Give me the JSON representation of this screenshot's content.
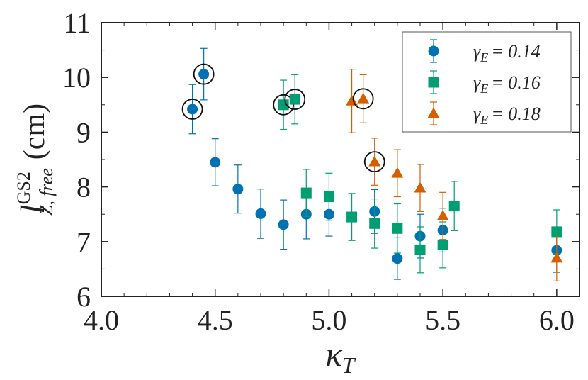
{
  "chart_data": {
    "type": "scatter",
    "title": "",
    "xlabel": "κ_T",
    "ylabel": "l^{GS2}_{Z, free} (cm)",
    "xlabel_parts": {
      "main": "κ",
      "sub": "T"
    },
    "ylabel_parts": {
      "main": "l",
      "sup": "GS2",
      "sub": "Z, free",
      "unit": "(cm)"
    },
    "xlim": [
      4.0,
      6.1
    ],
    "ylim": [
      6.0,
      11.0
    ],
    "xticks": [
      4.0,
      4.5,
      5.0,
      5.5,
      6.0
    ],
    "xtick_labels": [
      "4.0",
      "4.5",
      "5.0",
      "5.5",
      "6.0"
    ],
    "yticks": [
      6,
      7,
      8,
      9,
      10,
      11
    ],
    "ytick_labels": [
      "6",
      "7",
      "8",
      "9",
      "10",
      "11"
    ],
    "legend_position": "top-right",
    "series": [
      {
        "name": "γE = 0.14",
        "legend_label": "γ",
        "legend_sub": "E",
        "legend_value": "= 0.14",
        "marker": "circle",
        "color": "#0072B2",
        "points": [
          {
            "x": 4.4,
            "y": 9.42,
            "err": 0.45,
            "circled": true
          },
          {
            "x": 4.45,
            "y": 10.06,
            "err": 0.47,
            "circled": true
          },
          {
            "x": 4.5,
            "y": 8.45,
            "err": 0.43
          },
          {
            "x": 4.6,
            "y": 7.96,
            "err": 0.44
          },
          {
            "x": 4.7,
            "y": 7.51,
            "err": 0.45
          },
          {
            "x": 4.8,
            "y": 7.31,
            "err": 0.45
          },
          {
            "x": 4.9,
            "y": 7.5,
            "err": 0.45
          },
          {
            "x": 5.0,
            "y": 7.5,
            "err": 0.4
          },
          {
            "x": 5.2,
            "y": 7.55,
            "err": 0.4
          },
          {
            "x": 5.3,
            "y": 6.69,
            "err": 0.38
          },
          {
            "x": 5.4,
            "y": 7.1,
            "err": 0.4
          },
          {
            "x": 5.5,
            "y": 7.21,
            "err": 0.4
          },
          {
            "x": 6.0,
            "y": 6.84,
            "err": 0.4
          }
        ]
      },
      {
        "name": "γE = 0.16",
        "legend_label": "γ",
        "legend_sub": "E",
        "legend_value": "= 0.16",
        "marker": "square",
        "color": "#009E73",
        "points": [
          {
            "x": 4.8,
            "y": 9.5,
            "err": 0.45,
            "circled": true
          },
          {
            "x": 4.85,
            "y": 9.6,
            "err": 0.45,
            "circled": true
          },
          {
            "x": 4.9,
            "y": 7.89,
            "err": 0.43
          },
          {
            "x": 5.0,
            "y": 7.82,
            "err": 0.43
          },
          {
            "x": 5.1,
            "y": 7.45,
            "err": 0.43
          },
          {
            "x": 5.2,
            "y": 7.33,
            "err": 0.45
          },
          {
            "x": 5.3,
            "y": 7.24,
            "err": 0.45
          },
          {
            "x": 5.4,
            "y": 6.85,
            "err": 0.42
          },
          {
            "x": 5.5,
            "y": 6.94,
            "err": 0.42
          },
          {
            "x": 5.55,
            "y": 7.65,
            "err": 0.45
          },
          {
            "x": 6.0,
            "y": 7.18,
            "err": 0.4
          }
        ]
      },
      {
        "name": "γE = 0.18",
        "legend_label": "γ",
        "legend_sub": "E",
        "legend_value": "= 0.18",
        "marker": "triangle",
        "color": "#D55E00",
        "points": [
          {
            "x": 5.1,
            "y": 9.57,
            "err": 0.58
          },
          {
            "x": 5.15,
            "y": 9.61,
            "err": 0.44,
            "circled": true
          },
          {
            "x": 5.2,
            "y": 8.46,
            "err": 0.43,
            "circled": true
          },
          {
            "x": 5.3,
            "y": 8.25,
            "err": 0.43
          },
          {
            "x": 5.4,
            "y": 7.98,
            "err": 0.43
          },
          {
            "x": 5.5,
            "y": 7.47,
            "err": 0.43
          },
          {
            "x": 6.0,
            "y": 6.7,
            "err": 0.42
          }
        ]
      }
    ]
  }
}
